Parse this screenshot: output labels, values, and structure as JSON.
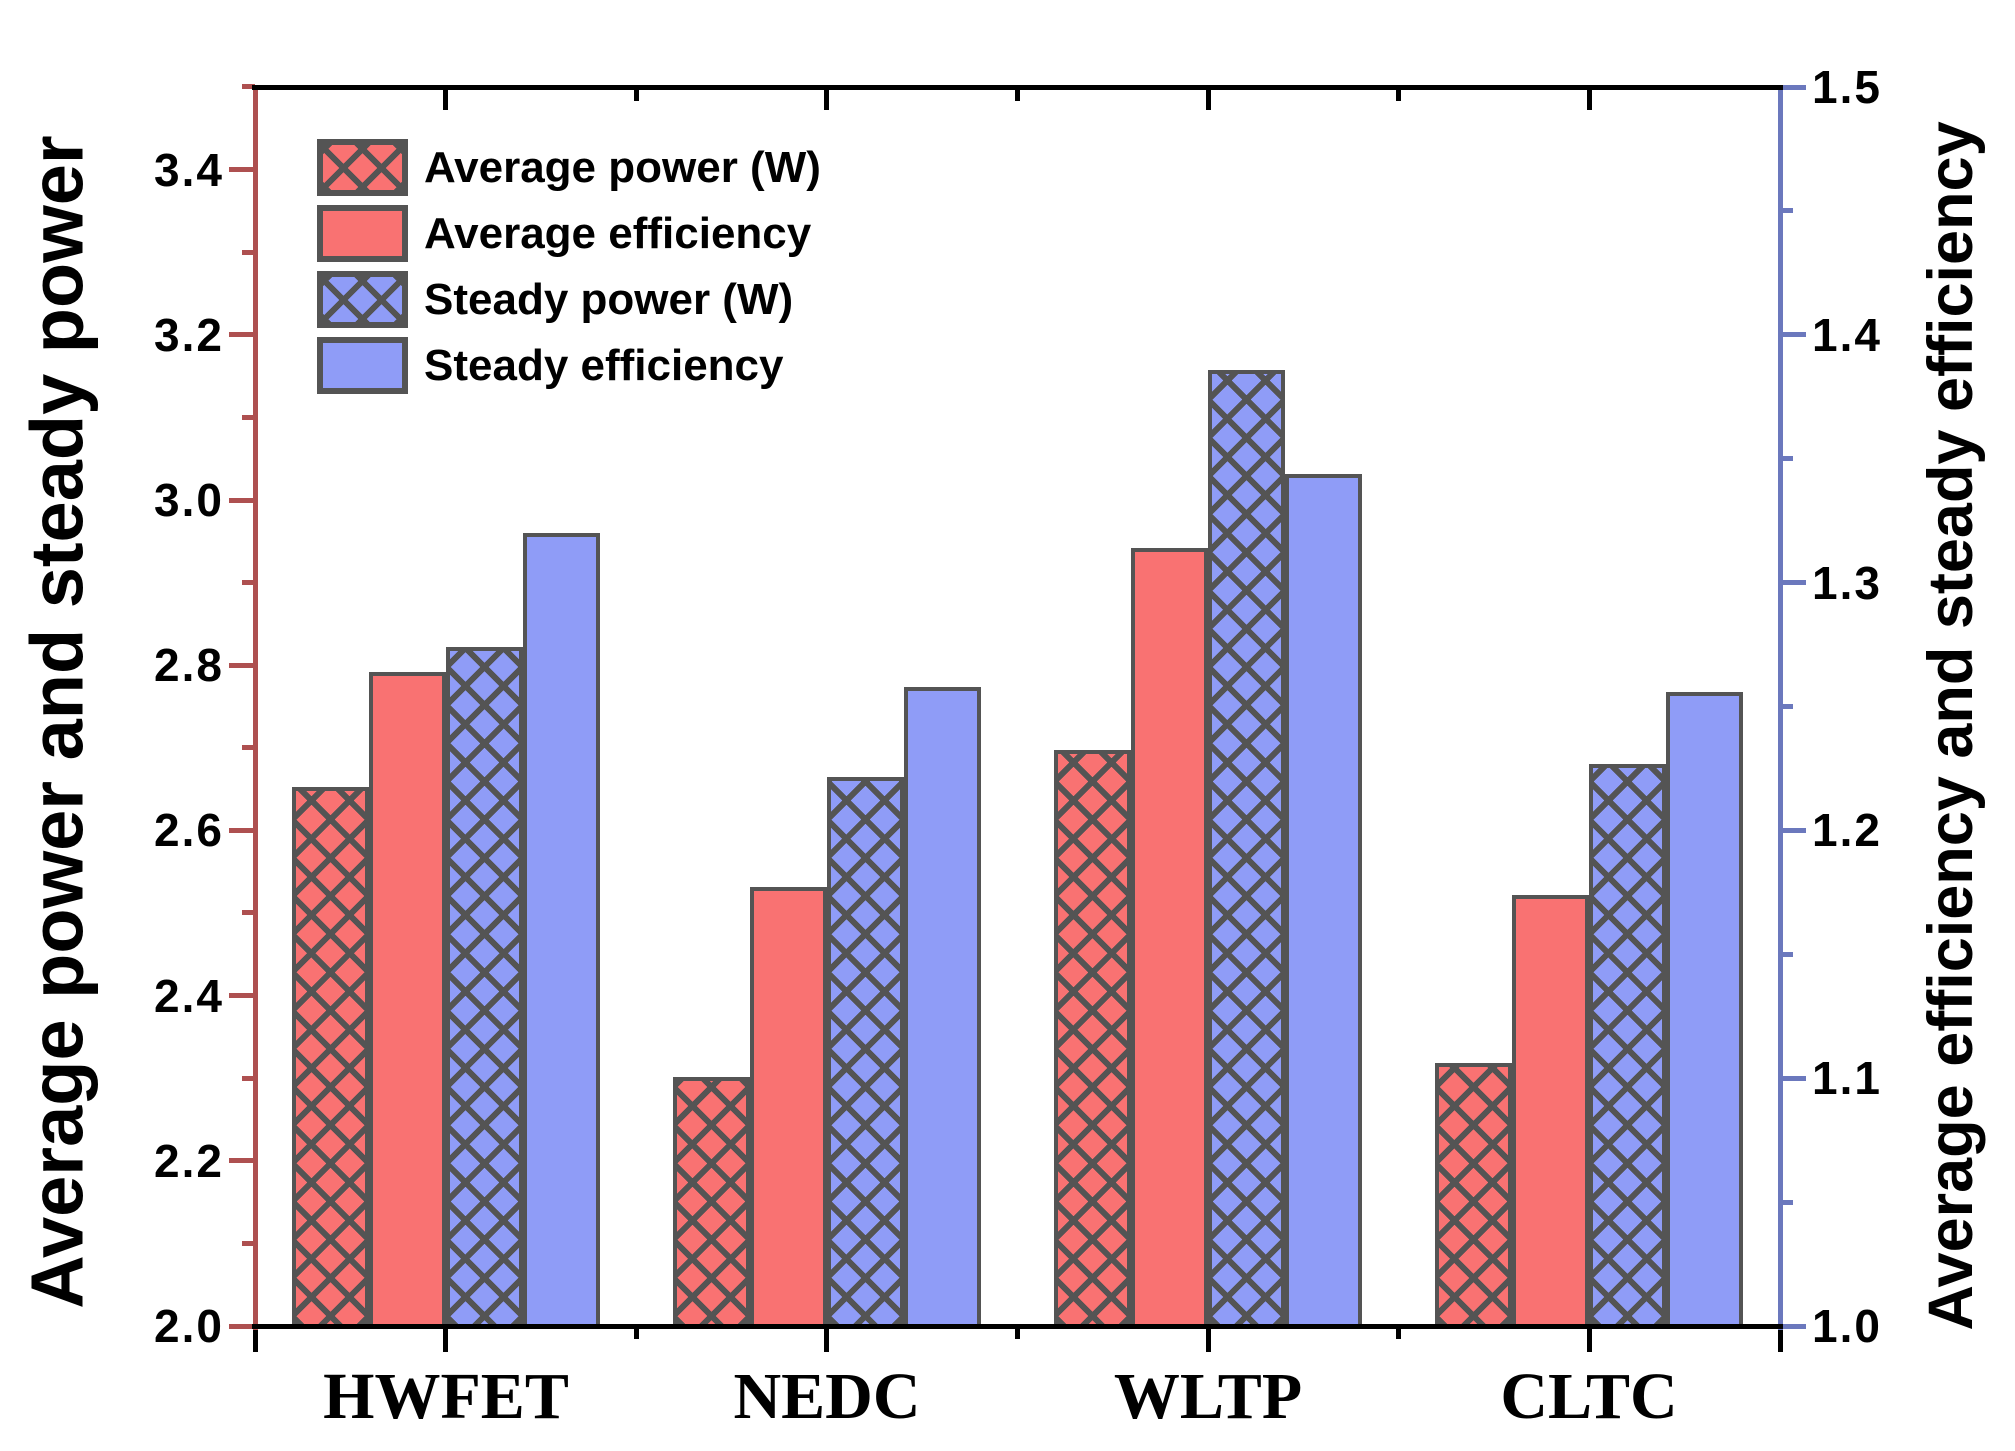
{
  "chart_data": {
    "type": "bar",
    "title": "",
    "categories": [
      "HWFET",
      "NEDC",
      "WLTP",
      "CLTC"
    ],
    "series": [
      {
        "name": "Average power (W)",
        "axis": "left",
        "pattern": "crosshatch",
        "color": "#f97272",
        "values": [
          2.653,
          2.302,
          2.697,
          2.318
        ]
      },
      {
        "name": "Average efficiency",
        "axis": "right",
        "pattern": "solid",
        "color": "#f97272",
        "values": [
          1.264,
          1.177,
          1.314,
          1.174
        ]
      },
      {
        "name": "Steady power (W)",
        "axis": "left",
        "pattern": "crosshatch",
        "color": "#8f9cf7",
        "values": [
          2.822,
          2.665,
          3.157,
          2.68
        ]
      },
      {
        "name": "Steady efficiency",
        "axis": "right",
        "pattern": "solid",
        "color": "#8f9cf7",
        "values": [
          1.32,
          1.258,
          1.344,
          1.256
        ]
      }
    ],
    "left_axis": {
      "label": "Average power and steady power",
      "min": 2.0,
      "max": 3.5,
      "major_tick_step": 0.2,
      "minor_tick_step": 0.1,
      "tick_labels": [
        "2.0",
        "2.2",
        "2.4",
        "2.6",
        "2.8",
        "3.0",
        "3.2",
        "3.4"
      ],
      "color": "#ae5050"
    },
    "right_axis": {
      "label": "Average efficiency and steady efficiency",
      "min": 1.0,
      "max": 1.5,
      "major_tick_step": 0.1,
      "minor_tick_step": 0.05,
      "tick_labels": [
        "1.0",
        "1.1",
        "1.2",
        "1.3",
        "1.4",
        "1.5"
      ],
      "color": "#6b78bd"
    },
    "x_axis": {
      "color": "#000000"
    },
    "legend": {
      "position": "top-left",
      "items": [
        "Average power (W)",
        "Average efficiency",
        "Steady power (W)",
        "Steady efficiency"
      ]
    },
    "grid": false,
    "bar_border_color": "#545454",
    "background": "#ffffff"
  }
}
